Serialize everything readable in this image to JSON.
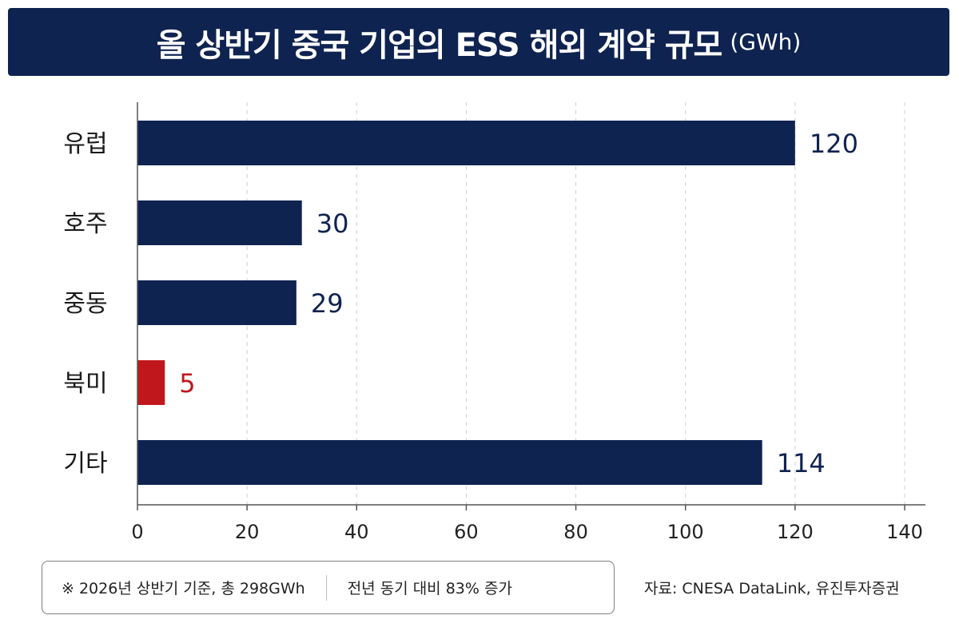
{
  "title": {
    "main": "올 상반기 중국 기업의 ESS 해외 계약 규모",
    "unit": "(GWh)"
  },
  "colors": {
    "navy": "#0f2350",
    "red": "#c0171c",
    "grid": "#d0d0d0",
    "axis": "#555555"
  },
  "chart_data": {
    "type": "bar",
    "orientation": "horizontal",
    "categories": [
      "유럽",
      "호주",
      "중동",
      "북미",
      "기타"
    ],
    "values": [
      120,
      30,
      29,
      5,
      114
    ],
    "value_labels": [
      "120",
      "30",
      "29",
      "5",
      "114"
    ],
    "bar_colors": [
      "#0f2350",
      "#0f2350",
      "#0f2350",
      "#c0171c",
      "#0f2350"
    ],
    "xlim": [
      0,
      140
    ],
    "xticks": [
      0,
      20,
      40,
      60,
      80,
      100,
      120,
      140
    ],
    "xtick_labels": [
      "0",
      "20",
      "40",
      "60",
      "80",
      "100",
      "120",
      "140"
    ],
    "grid": "vertical dashed",
    "legend": "none"
  },
  "footer": {
    "note_left": "※ 2026년 상반기 기준, 총 298GWh",
    "note_right": "전년 동기 대비 83% 증가",
    "source": "자료: CNESA DataLink, 유진투자증권"
  }
}
